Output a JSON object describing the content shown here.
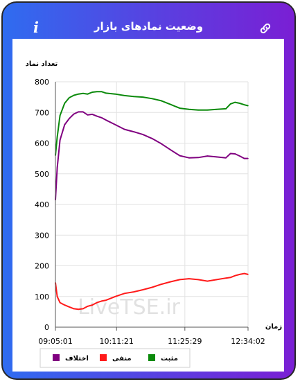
{
  "header": {
    "title": "وضعیت نمادهای بازار",
    "info_icon": "info-icon",
    "link_icon": "link-icon"
  },
  "colors": {
    "positive": "#0b8a0b",
    "negative": "#ff1a1a",
    "difference": "#800080",
    "gradient_start": "#2f6cf0",
    "gradient_end": "#7a1fd4"
  },
  "watermark": "LiveTSE.ir",
  "chart_data": {
    "type": "line",
    "ylabel": "تعداد نماد",
    "xlabel": "زمان",
    "ylim": [
      0,
      800
    ],
    "yticks": [
      "0",
      "100",
      "200",
      "300",
      "400",
      "500",
      "600",
      "700",
      "800"
    ],
    "xticks": [
      "09:05:01",
      "10:11:21",
      "11:25:29",
      "12:34:02"
    ],
    "grid": true,
    "legend_position": "bottom",
    "series": [
      {
        "name": "مثبت",
        "color": "#0b8a0b",
        "x": [
          "09:05",
          "09:07",
          "09:10",
          "09:15",
          "09:20",
          "09:25",
          "09:30",
          "09:35",
          "09:40",
          "09:45",
          "09:50",
          "09:55",
          "10:00",
          "10:10",
          "10:20",
          "10:30",
          "10:40",
          "10:50",
          "11:00",
          "11:10",
          "11:20",
          "11:30",
          "11:40",
          "11:50",
          "12:00",
          "12:10",
          "12:15",
          "12:20",
          "12:25",
          "12:30",
          "12:34"
        ],
        "values": [
          560,
          620,
          690,
          730,
          748,
          756,
          760,
          762,
          760,
          766,
          768,
          768,
          763,
          760,
          755,
          752,
          750,
          745,
          738,
          726,
          714,
          710,
          708,
          708,
          710,
          712,
          728,
          733,
          730,
          725,
          722
        ]
      },
      {
        "name": "منفی",
        "color": "#ff1a1a",
        "x": [
          "09:05",
          "09:07",
          "09:10",
          "09:15",
          "09:20",
          "09:25",
          "09:30",
          "09:35",
          "09:40",
          "09:45",
          "09:50",
          "09:55",
          "10:00",
          "10:10",
          "10:20",
          "10:30",
          "10:40",
          "10:50",
          "11:00",
          "11:10",
          "11:20",
          "11:30",
          "11:40",
          "11:50",
          "12:00",
          "12:10",
          "12:15",
          "12:20",
          "12:25",
          "12:30",
          "12:34"
        ],
        "values": [
          145,
          100,
          80,
          72,
          66,
          60,
          58,
          60,
          68,
          72,
          80,
          85,
          88,
          100,
          110,
          115,
          122,
          130,
          140,
          148,
          155,
          158,
          155,
          150,
          155,
          160,
          162,
          168,
          172,
          175,
          172
        ]
      },
      {
        "name": "اختلاف",
        "color": "#800080",
        "x": [
          "09:05",
          "09:07",
          "09:10",
          "09:15",
          "09:20",
          "09:25",
          "09:30",
          "09:35",
          "09:40",
          "09:45",
          "09:50",
          "09:55",
          "10:00",
          "10:10",
          "10:20",
          "10:30",
          "10:40",
          "10:50",
          "11:00",
          "11:10",
          "11:20",
          "11:30",
          "11:40",
          "11:50",
          "12:00",
          "12:10",
          "12:15",
          "12:20",
          "12:25",
          "12:30",
          "12:34"
        ],
        "values": [
          415,
          520,
          610,
          660,
          680,
          695,
          702,
          702,
          692,
          694,
          688,
          683,
          675,
          660,
          645,
          637,
          628,
          615,
          598,
          578,
          559,
          552,
          553,
          558,
          555,
          552,
          566,
          565,
          558,
          550,
          550
        ]
      }
    ],
    "legend": [
      {
        "label": "اختلاف",
        "color": "#800080"
      },
      {
        "label": "منفی",
        "color": "#ff1a1a"
      },
      {
        "label": "مثبت",
        "color": "#0b8a0b"
      }
    ]
  }
}
